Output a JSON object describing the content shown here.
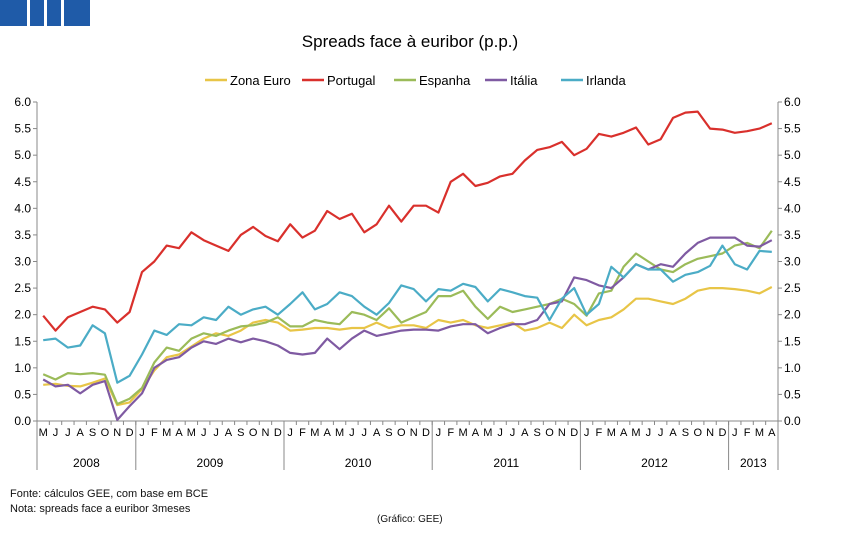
{
  "chart_data": {
    "type": "line",
    "title": "Spreads face à euribor (p.p.)",
    "ylim": [
      0,
      6
    ],
    "yticks": [
      "0.0",
      "0.5",
      "1.0",
      "1.5",
      "2.0",
      "2.5",
      "3.0",
      "3.5",
      "4.0",
      "4.5",
      "5.0",
      "5.5",
      "6.0"
    ],
    "yticks_right": [
      "0.0",
      "0.5",
      "1.0",
      "1.5",
      "2.0",
      "2.5",
      "3.0",
      "3.5",
      "4.0",
      "4.5",
      "5.0",
      "5.5",
      "6.0"
    ],
    "grid": false,
    "legend": "top",
    "categories": [
      "M",
      "J",
      "J",
      "A",
      "S",
      "O",
      "N",
      "D",
      "J",
      "F",
      "M",
      "A",
      "M",
      "J",
      "J",
      "A",
      "S",
      "O",
      "N",
      "D",
      "J",
      "F",
      "M",
      "A",
      "M",
      "J",
      "J",
      "A",
      "S",
      "O",
      "N",
      "D",
      "J",
      "F",
      "M",
      "A",
      "M",
      "J",
      "J",
      "A",
      "S",
      "O",
      "N",
      "D",
      "J",
      "F",
      "M",
      "A",
      "M",
      "J",
      "J",
      "A",
      "S",
      "O",
      "N",
      "D",
      "J",
      "F",
      "M",
      "A"
    ],
    "years": [
      {
        "label": "2008",
        "start": 0,
        "end": 8
      },
      {
        "label": "2009",
        "start": 8,
        "end": 20
      },
      {
        "label": "2010",
        "start": 20,
        "end": 32
      },
      {
        "label": "2011",
        "start": 32,
        "end": 44
      },
      {
        "label": "2012",
        "start": 44,
        "end": 56
      },
      {
        "label": "2013",
        "start": 56,
        "end": 60
      }
    ],
    "series": [
      {
        "name": "Zona Euro",
        "color": "#e8c547",
        "values": [
          0.68,
          0.7,
          0.66,
          0.65,
          0.72,
          0.8,
          0.3,
          0.35,
          0.6,
          0.95,
          1.2,
          1.25,
          1.4,
          1.55,
          1.65,
          1.6,
          1.7,
          1.85,
          1.9,
          1.85,
          1.7,
          1.72,
          1.75,
          1.75,
          1.72,
          1.75,
          1.75,
          1.85,
          1.75,
          1.8,
          1.8,
          1.75,
          1.9,
          1.85,
          1.9,
          1.8,
          1.75,
          1.8,
          1.85,
          1.7,
          1.75,
          1.85,
          1.75,
          2.0,
          1.8,
          1.9,
          1.95,
          2.1,
          2.3,
          2.3,
          2.25,
          2.2,
          2.3,
          2.45,
          2.5,
          2.5,
          2.48,
          2.45,
          2.4,
          2.52
        ]
      },
      {
        "name": "Portugal",
        "color": "#d9302c",
        "values": [
          1.98,
          1.7,
          1.95,
          2.05,
          2.15,
          2.1,
          1.85,
          2.05,
          2.8,
          3.0,
          3.3,
          3.25,
          3.55,
          3.4,
          3.3,
          3.2,
          3.5,
          3.65,
          3.48,
          3.38,
          3.7,
          3.45,
          3.58,
          3.95,
          3.8,
          3.9,
          3.55,
          3.7,
          4.05,
          3.75,
          4.05,
          4.05,
          3.92,
          4.5,
          4.65,
          4.42,
          4.48,
          4.6,
          4.65,
          4.9,
          5.1,
          5.15,
          5.25,
          5.0,
          5.12,
          5.4,
          5.35,
          5.42,
          5.52,
          5.2,
          5.3,
          5.7,
          5.8,
          5.82,
          5.5,
          5.48,
          5.42,
          5.45,
          5.5,
          5.6
        ]
      },
      {
        "name": "Espanha",
        "color": "#9bbb59",
        "values": [
          0.88,
          0.78,
          0.9,
          0.88,
          0.9,
          0.87,
          0.32,
          0.42,
          0.62,
          1.1,
          1.38,
          1.32,
          1.55,
          1.65,
          1.6,
          1.7,
          1.78,
          1.8,
          1.85,
          1.95,
          1.78,
          1.78,
          1.9,
          1.85,
          1.82,
          2.05,
          2.0,
          1.9,
          2.12,
          1.85,
          1.95,
          2.05,
          2.35,
          2.35,
          2.45,
          2.15,
          1.92,
          2.15,
          2.05,
          2.1,
          2.15,
          2.2,
          2.3,
          2.2,
          1.98,
          2.4,
          2.45,
          2.9,
          3.15,
          3.0,
          2.85,
          2.8,
          2.95,
          3.05,
          3.1,
          3.15,
          3.3,
          3.35,
          3.25,
          3.58
        ]
      },
      {
        "name": "Itália",
        "color": "#7f5aa2",
        "values": [
          0.78,
          0.65,
          0.68,
          0.52,
          0.68,
          0.75,
          0.02,
          0.28,
          0.52,
          1.0,
          1.15,
          1.2,
          1.38,
          1.5,
          1.45,
          1.55,
          1.48,
          1.55,
          1.5,
          1.42,
          1.28,
          1.25,
          1.28,
          1.55,
          1.35,
          1.55,
          1.7,
          1.6,
          1.65,
          1.7,
          1.72,
          1.72,
          1.7,
          1.78,
          1.82,
          1.82,
          1.65,
          1.75,
          1.82,
          1.82,
          1.9,
          2.2,
          2.25,
          2.7,
          2.65,
          2.55,
          2.5,
          2.7,
          2.95,
          2.85,
          2.95,
          2.9,
          3.15,
          3.35,
          3.45,
          3.45,
          3.45,
          3.3,
          3.28,
          3.4
        ]
      },
      {
        "name": "Irlanda",
        "color": "#4bacc6",
        "values": [
          1.52,
          1.55,
          1.38,
          1.42,
          1.8,
          1.65,
          0.72,
          0.85,
          1.25,
          1.7,
          1.62,
          1.82,
          1.8,
          1.95,
          1.9,
          2.15,
          2.0,
          2.1,
          2.15,
          2.0,
          2.2,
          2.42,
          2.1,
          2.2,
          2.42,
          2.35,
          2.15,
          2.0,
          2.22,
          2.55,
          2.48,
          2.25,
          2.48,
          2.45,
          2.58,
          2.52,
          2.25,
          2.48,
          2.42,
          2.35,
          2.32,
          1.9,
          2.3,
          2.5,
          2.0,
          2.2,
          2.9,
          2.7,
          2.95,
          2.85,
          2.85,
          2.62,
          2.75,
          2.8,
          2.92,
          3.3,
          2.95,
          2.85,
          3.2,
          3.18
        ]
      }
    ]
  },
  "footnotes": {
    "source": "Fonte: cálculos GEE, com base em BCE",
    "note": "Nota: spreads face a euribor 3meses",
    "credit": "(Gráfico: GEE)"
  }
}
